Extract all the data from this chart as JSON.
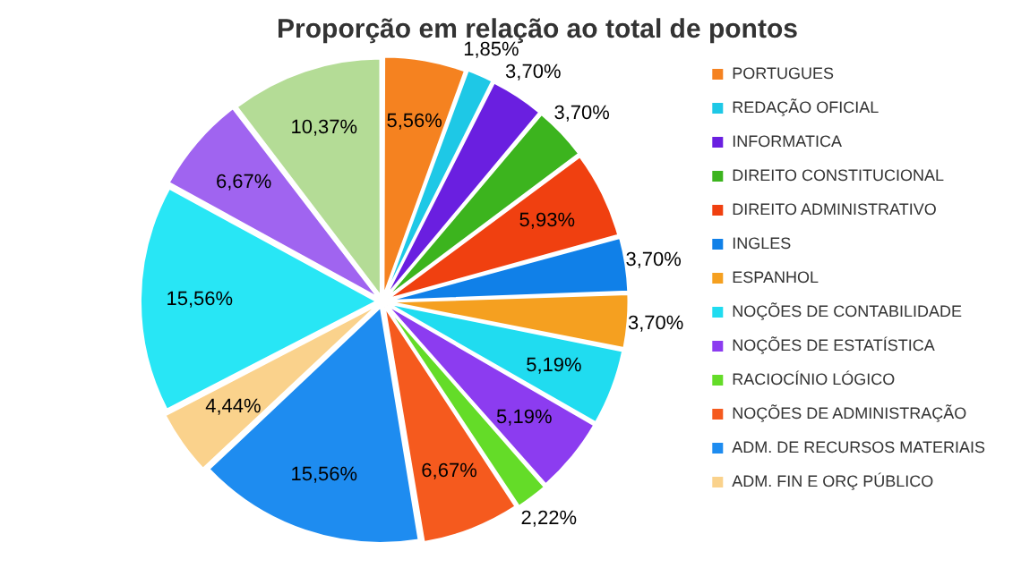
{
  "chart_data": {
    "type": "pie",
    "title": "Proporção em relação ao total de pontos",
    "categories": [
      "PORTUGUES",
      "REDAÇÃO OFICIAL",
      "INFORMATICA",
      "DIREITO CONSTITUCIONAL",
      "DIREITO ADMINISTRATIVO",
      "INGLES",
      "ESPANHOL",
      "NOÇÕES DE CONTABILIDADE",
      "NOÇÕES DE ESTATÍSTICA",
      "RACIOCÍNIO LÓGICO",
      "NOÇÕES DE ADMINISTRAÇÃO",
      "ADM. DE RECURSOS MATERIAIS",
      "ADM. FIN E ORÇ PÚBLICO",
      null,
      null,
      null
    ],
    "values": [
      5.56,
      1.85,
      3.7,
      3.7,
      5.93,
      3.7,
      3.7,
      5.19,
      5.19,
      2.22,
      6.67,
      15.56,
      4.44,
      15.56,
      6.67,
      10.37
    ],
    "value_labels": [
      "5,56%",
      "1,85%",
      "3,70%",
      "3,70%",
      "5,93%",
      "3,70%",
      "3,70%",
      "5,19%",
      "5,19%",
      "2,22%",
      "6,67%",
      "15,56%",
      "4,44%",
      "15,56%",
      "6,67%",
      "10,37%"
    ],
    "colors": [
      "#f58220",
      "#1ec8e6",
      "#6a1fe0",
      "#3cb41e",
      "#f04010",
      "#1080e8",
      "#f5a020",
      "#20dcf0",
      "#8c3cf0",
      "#64dc28",
      "#f55a1e",
      "#1e8cf0",
      "#fad28c",
      "#28e6f5",
      "#a064f0",
      "#b4dc96"
    ],
    "legend": "right"
  }
}
